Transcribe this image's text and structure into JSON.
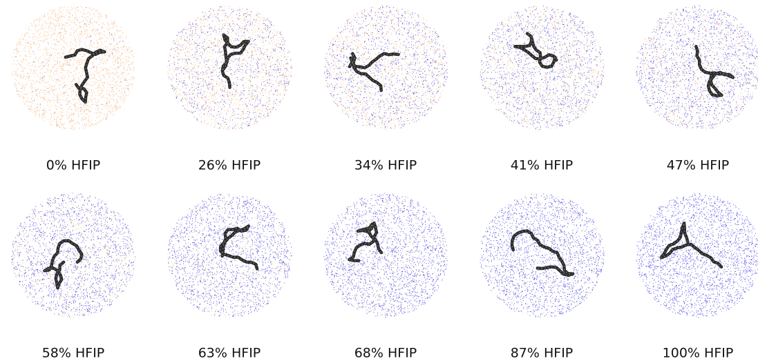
{
  "panels": [
    {
      "label": "0% HFIP"
    },
    {
      "label": "26% HFIP"
    },
    {
      "label": "34% HFIP"
    },
    {
      "label": "41% HFIP"
    },
    {
      "label": "47% HFIP"
    },
    {
      "label": "58% HFIP"
    },
    {
      "label": "63% HFIP"
    },
    {
      "label": "68% HFIP"
    },
    {
      "label": "87% HFIP"
    },
    {
      "label": "100% HFIP"
    }
  ]
}
